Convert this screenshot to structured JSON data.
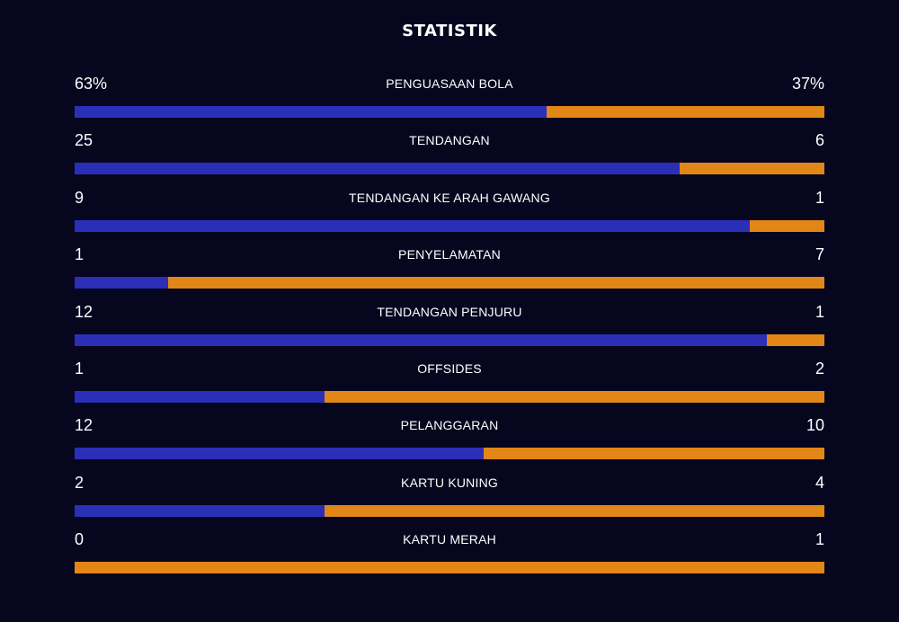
{
  "title": "STATISTIK",
  "colors": {
    "background": "#07061f",
    "home": "#2b2fb8",
    "away": "#e28717"
  },
  "stats": [
    {
      "label": "PENGUASAAN BOLA",
      "home_display": "63%",
      "away_display": "37%",
      "home": 63,
      "away": 37
    },
    {
      "label": "TENDANGAN",
      "home_display": "25",
      "away_display": "6",
      "home": 25,
      "away": 6
    },
    {
      "label": "TENDANGAN KE ARAH GAWANG",
      "home_display": "9",
      "away_display": "1",
      "home": 9,
      "away": 1
    },
    {
      "label": "PENYELAMATAN",
      "home_display": "1",
      "away_display": "7",
      "home": 1,
      "away": 7
    },
    {
      "label": "TENDANGAN PENJURU",
      "home_display": "12",
      "away_display": "1",
      "home": 12,
      "away": 1
    },
    {
      "label": "OFFSIDES",
      "home_display": "1",
      "away_display": "2",
      "home": 1,
      "away": 2
    },
    {
      "label": "PELANGGARAN",
      "home_display": "12",
      "away_display": "10",
      "home": 12,
      "away": 10
    },
    {
      "label": "KARTU KUNING",
      "home_display": "2",
      "away_display": "4",
      "home": 2,
      "away": 4
    },
    {
      "label": "KARTU MERAH",
      "home_display": "0",
      "away_display": "1",
      "home": 0,
      "away": 1
    }
  ]
}
